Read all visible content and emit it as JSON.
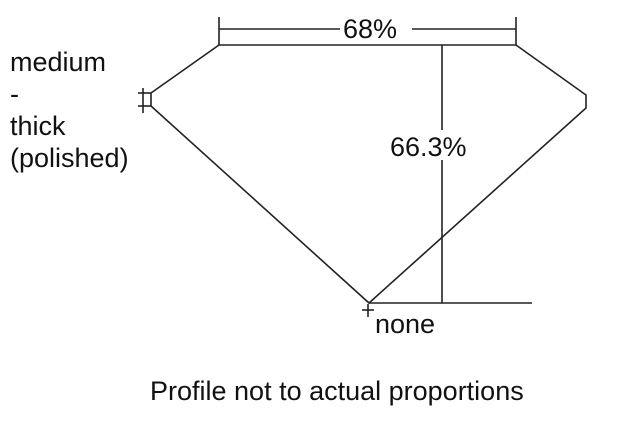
{
  "girdle_label": [
    "medium",
    "-",
    "thick",
    "(polished)"
  ],
  "table_percentage": "68%",
  "depth_percentage": "66.3%",
  "culet_label": "none",
  "caption": "Profile not to actual proportions",
  "line_color": "#222222"
}
